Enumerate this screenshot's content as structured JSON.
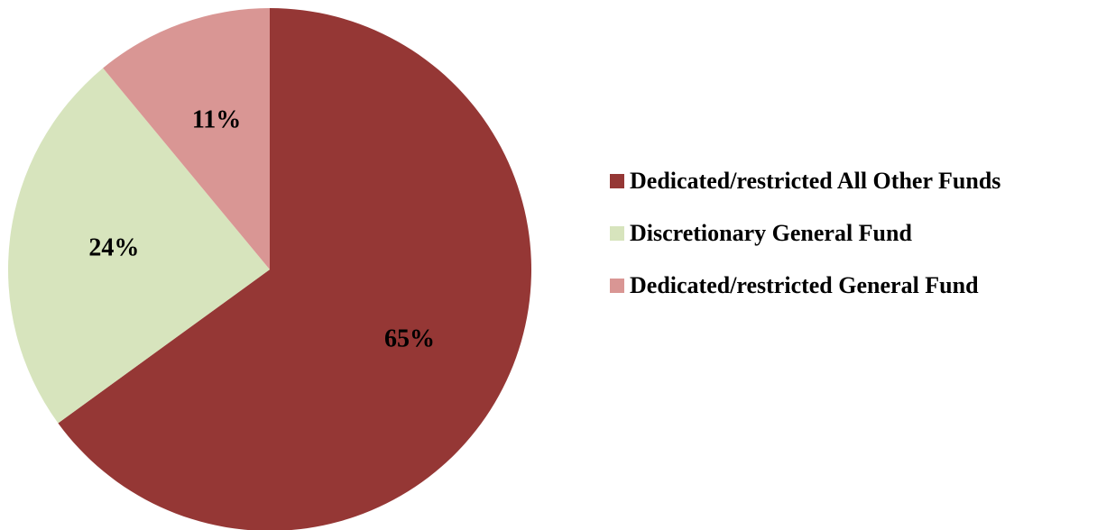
{
  "chart_data": {
    "type": "pie",
    "title": "",
    "slices": [
      {
        "name": "Dedicated/restricted All Other Funds",
        "value": 65,
        "label": "65%",
        "color": "#953735"
      },
      {
        "name": "Discretionary General Fund",
        "value": 24,
        "label": "24%",
        "color": "#D7E4BD"
      },
      {
        "name": "Dedicated/restricted General Fund",
        "value": 11,
        "label": "11%",
        "color": "#D99694"
      }
    ],
    "start_angle": "12 o'clock",
    "direction": "clockwise",
    "legend_position": "right"
  }
}
